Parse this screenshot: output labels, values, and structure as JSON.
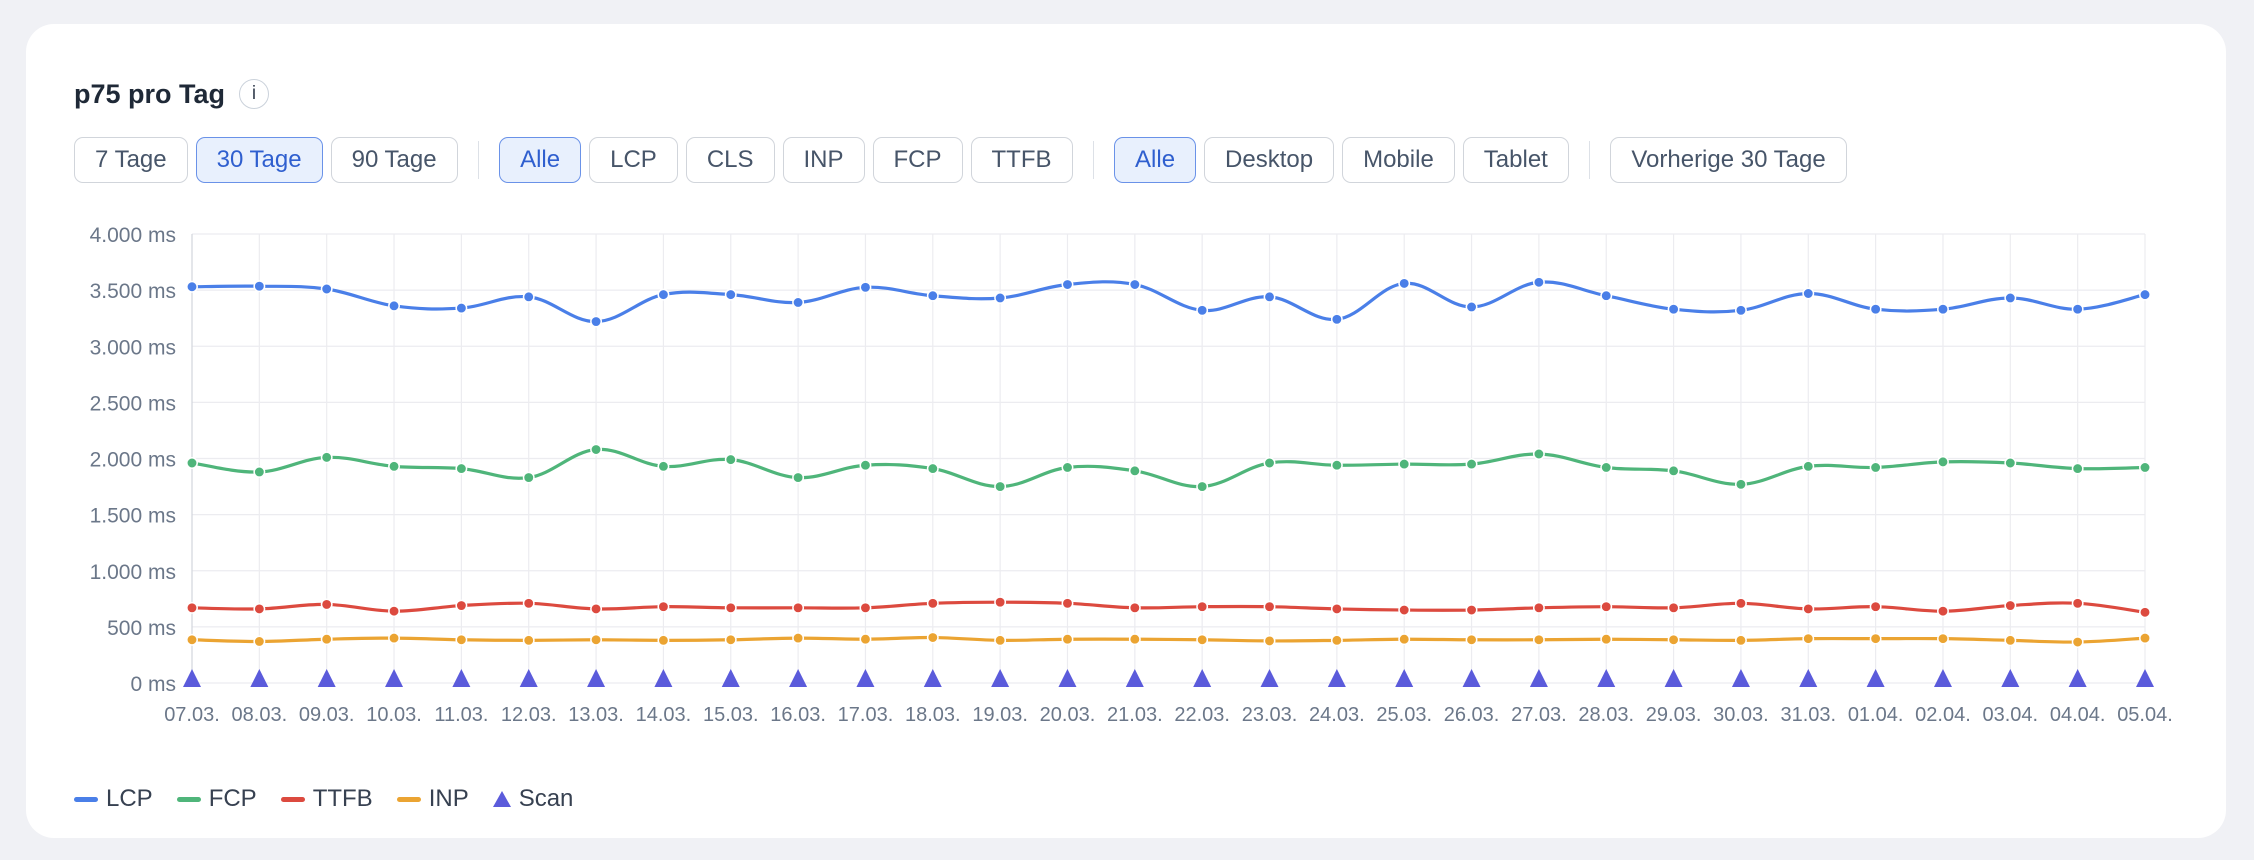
{
  "card": {
    "title": "p75 pro Tag",
    "info_label": "i"
  },
  "filters": {
    "ranges": [
      {
        "label": "7 Tage",
        "active": false
      },
      {
        "label": "30 Tage",
        "active": true
      },
      {
        "label": "90 Tage",
        "active": false
      }
    ],
    "metrics": [
      {
        "label": "Alle",
        "active": true
      },
      {
        "label": "LCP",
        "active": false
      },
      {
        "label": "CLS",
        "active": false
      },
      {
        "label": "INP",
        "active": false
      },
      {
        "label": "FCP",
        "active": false
      },
      {
        "label": "TTFB",
        "active": false
      }
    ],
    "devices": [
      {
        "label": "Alle",
        "active": true
      },
      {
        "label": "Desktop",
        "active": false
      },
      {
        "label": "Mobile",
        "active": false
      },
      {
        "label": "Tablet",
        "active": false
      }
    ],
    "compare": {
      "label": "Vorherige 30 Tage",
      "active": false
    }
  },
  "colors": {
    "LCP": "#4a7fe8",
    "FCP": "#4fb57a",
    "TTFB": "#dc4a3f",
    "INP": "#eba432",
    "Scan": "#5b5bdb"
  },
  "chart_data": {
    "type": "line",
    "x": [
      "07.03.",
      "08.03.",
      "09.03.",
      "10.03.",
      "11.03.",
      "12.03.",
      "13.03.",
      "14.03.",
      "15.03.",
      "16.03.",
      "17.03.",
      "18.03.",
      "19.03.",
      "20.03.",
      "21.03.",
      "22.03.",
      "23.03.",
      "24.03.",
      "25.03.",
      "26.03.",
      "27.03.",
      "28.03.",
      "29.03.",
      "30.03.",
      "31.03.",
      "01.04.",
      "02.04.",
      "03.04.",
      "04.04.",
      "05.04."
    ],
    "yticks": [
      "0 ms",
      "500 ms",
      "1.000 ms",
      "1.500 ms",
      "2.000 ms",
      "2.500 ms",
      "3.000 ms",
      "3.500 ms",
      "4.000 ms"
    ],
    "ylim": [
      0,
      4000
    ],
    "grid": true,
    "legend_position": "bottom-left",
    "series": [
      {
        "name": "LCP",
        "values": [
          3530,
          3535,
          3510,
          3360,
          3340,
          3440,
          3220,
          3460,
          3460,
          3390,
          3525,
          3450,
          3430,
          3550,
          3550,
          3320,
          3440,
          3240,
          3560,
          3350,
          3570,
          3450,
          3330,
          3320,
          3470,
          3330,
          3330,
          3430,
          3330,
          3460
        ]
      },
      {
        "name": "FCP",
        "values": [
          1960,
          1880,
          2010,
          1930,
          1910,
          1830,
          2080,
          1930,
          1990,
          1830,
          1940,
          1910,
          1750,
          1920,
          1890,
          1750,
          1960,
          1940,
          1950,
          1950,
          2040,
          1920,
          1890,
          1770,
          1930,
          1920,
          1970,
          1960,
          1910,
          1920
        ]
      },
      {
        "name": "TTFB",
        "values": [
          670,
          660,
          700,
          640,
          690,
          710,
          660,
          680,
          670,
          670,
          670,
          710,
          720,
          710,
          670,
          680,
          680,
          660,
          650,
          650,
          670,
          680,
          670,
          710,
          660,
          680,
          640,
          690,
          710,
          630
        ]
      },
      {
        "name": "INP",
        "values": [
          385,
          370,
          390,
          400,
          385,
          380,
          385,
          380,
          385,
          400,
          390,
          405,
          380,
          390,
          390,
          385,
          375,
          380,
          390,
          385,
          385,
          390,
          385,
          380,
          395,
          395,
          395,
          380,
          365,
          400
        ]
      },
      {
        "name": "Scan",
        "marker": "triangle",
        "values": [
          0,
          0,
          0,
          0,
          0,
          0,
          0,
          0,
          0,
          0,
          0,
          0,
          0,
          0,
          0,
          0,
          0,
          0,
          0,
          0,
          0,
          0,
          0,
          0,
          0,
          0,
          0,
          0,
          0,
          0
        ]
      }
    ]
  }
}
